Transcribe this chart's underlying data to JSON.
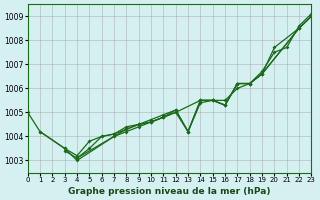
{
  "title": "Graphe pression niveau de la mer (hPa)",
  "bg_color": "#d4f0f0",
  "grid_color": "#aaaaaa",
  "line_color": "#1a6b1a",
  "xlim": [
    0,
    23
  ],
  "ylim": [
    1002.5,
    1009.5
  ],
  "xticks": [
    0,
    1,
    2,
    3,
    4,
    5,
    6,
    7,
    8,
    9,
    10,
    11,
    12,
    13,
    14,
    15,
    16,
    17,
    18,
    19,
    20,
    21,
    22,
    23
  ],
  "yticks": [
    1003,
    1004,
    1005,
    1006,
    1007,
    1008,
    1009
  ],
  "series_x": [
    [
      0,
      1,
      3,
      4,
      7,
      8,
      9,
      10,
      11,
      12,
      13,
      14,
      15,
      16,
      17,
      18,
      19,
      22,
      23
    ],
    [
      1,
      3,
      4,
      5,
      6,
      7,
      8,
      9,
      10,
      11,
      12,
      13,
      14,
      15,
      16,
      17,
      18,
      19,
      22,
      23
    ],
    [
      3,
      4,
      7,
      8,
      9,
      10,
      11,
      12,
      14,
      15,
      16,
      17,
      18,
      19,
      20,
      21,
      22,
      23
    ],
    [
      4,
      5,
      6,
      7,
      8,
      9,
      10,
      11,
      12,
      13,
      14,
      15,
      16,
      17,
      18,
      19,
      20,
      22,
      23
    ]
  ],
  "series_y": [
    [
      1005.0,
      1004.2,
      1003.5,
      1003.0,
      1004.0,
      1004.3,
      1004.5,
      1004.6,
      1004.8,
      1005.0,
      1004.2,
      1005.5,
      1005.5,
      1005.3,
      1006.2,
      1006.2,
      1006.6,
      1008.5,
      1009.0
    ],
    [
      1004.2,
      1003.5,
      1003.2,
      1003.8,
      1004.0,
      1004.1,
      1004.3,
      1004.5,
      1004.7,
      1004.9,
      1005.1,
      1004.2,
      1005.4,
      1005.5,
      1005.3,
      1006.2,
      1006.2,
      1006.6,
      1008.5,
      1009.0
    ],
    [
      1003.4,
      1003.1,
      1004.0,
      1004.2,
      1004.4,
      1004.6,
      1004.8,
      1005.0,
      1005.5,
      1005.5,
      1005.5,
      1006.0,
      1006.2,
      1006.7,
      1007.5,
      1007.7,
      1008.6,
      1009.1
    ],
    [
      1003.1,
      1003.5,
      1004.0,
      1004.1,
      1004.4,
      1004.5,
      1004.6,
      1004.8,
      1005.1,
      1004.2,
      1005.5,
      1005.5,
      1005.3,
      1006.2,
      1006.2,
      1006.6,
      1007.7,
      1008.5,
      1009.0
    ]
  ]
}
